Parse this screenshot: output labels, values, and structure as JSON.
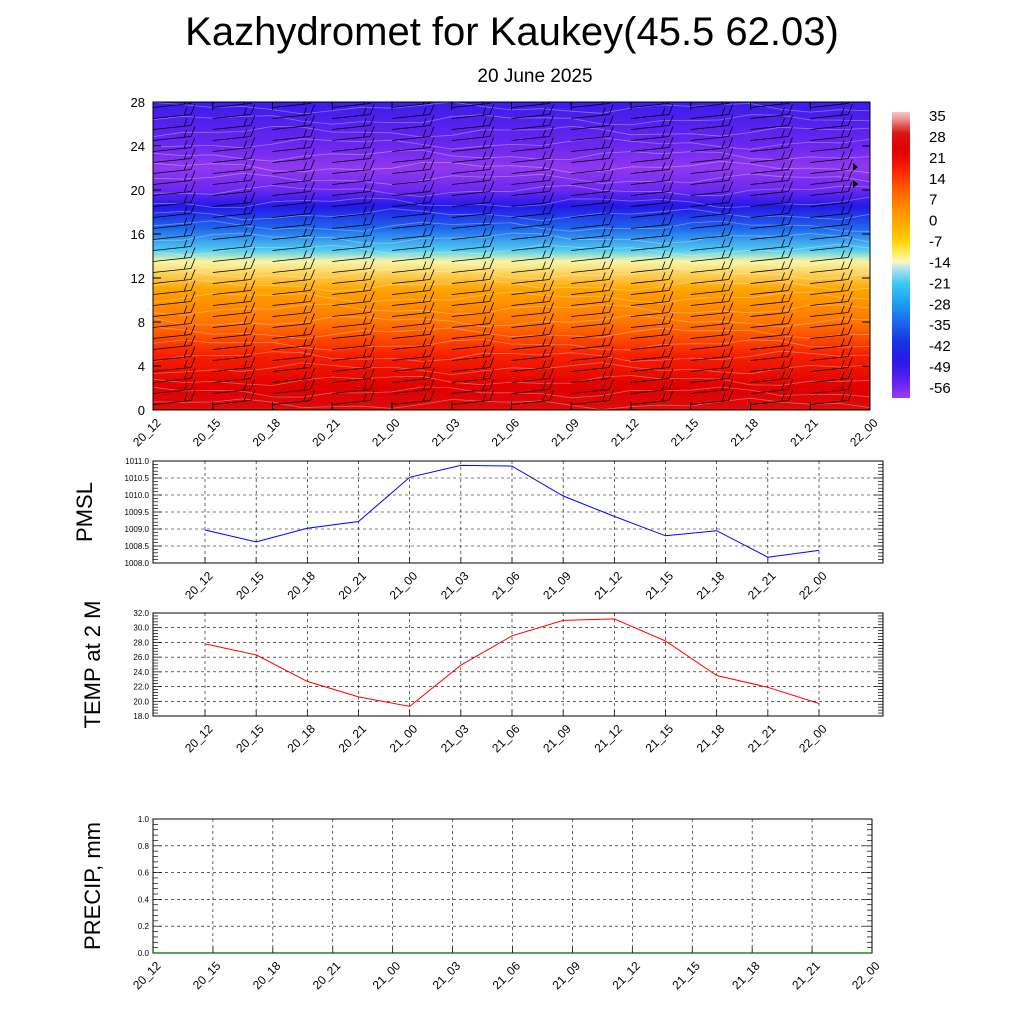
{
  "header": {
    "title": "Kazhydromet for Kaukey(45.5 62.03)",
    "subtitle": "20 June 2025"
  },
  "chart_data": [
    {
      "type": "heatmap",
      "name": "temperature-height",
      "ylabel": "",
      "xlabel": "",
      "ylim": [
        0,
        28
      ],
      "yticks": [
        "0",
        "4",
        "8",
        "12",
        "16",
        "20",
        "24",
        "28"
      ],
      "x_categories": [
        "20_12",
        "20_15",
        "20_18",
        "20_21",
        "21_00",
        "21_03",
        "21_06",
        "21_09",
        "21_12",
        "21_15",
        "21_18",
        "21_21",
        "22_00"
      ],
      "colorbar_labels": [
        "35",
        "28",
        "21",
        "14",
        "7",
        "0",
        "-7",
        "-14",
        "-21",
        "-28",
        "-35",
        "-42",
        "-49",
        "-56"
      ],
      "colorbar_range": [
        -63,
        42
      ],
      "temperature_profile": [
        {
          "height": 0,
          "value": 32
        },
        {
          "height": 2,
          "value": 28
        },
        {
          "height": 5,
          "value": 21
        },
        {
          "height": 8,
          "value": 10
        },
        {
          "height": 11,
          "value": 2
        },
        {
          "height": 13.5,
          "value": -12
        },
        {
          "height": 14.5,
          "value": -20
        },
        {
          "height": 16.5,
          "value": -35
        },
        {
          "height": 18.5,
          "value": -49
        },
        {
          "height": 20,
          "value": -58
        },
        {
          "height": 22,
          "value": -62
        },
        {
          "height": 24,
          "value": -58
        },
        {
          "height": 28,
          "value": -52
        }
      ],
      "wind_barbs": "yes",
      "grid": false
    },
    {
      "type": "line",
      "name": "pmsl",
      "ylabel": "PMSL",
      "ylim": [
        1008.0,
        1011.0
      ],
      "yticks": [
        "1008.0",
        "1008.5",
        "1009.0",
        "1009.5",
        "1010.0",
        "1010.5",
        "1011.0"
      ],
      "categories": [
        "20_12",
        "20_15",
        "20_18",
        "20_21",
        "21_00",
        "21_03",
        "21_06",
        "21_09",
        "21_12",
        "21_15",
        "21_18",
        "21_21",
        "22_00"
      ],
      "series": [
        {
          "color": "#0000ff",
          "values": [
            1008.97,
            1008.62,
            1009.02,
            1009.22,
            1010.52,
            1010.87,
            1010.85,
            1009.97,
            1009.37,
            1008.8,
            1008.95,
            1008.17,
            1008.37
          ]
        }
      ],
      "grid": true
    },
    {
      "type": "line",
      "name": "temp2m",
      "ylabel": "TEMP at 2 M",
      "ylim": [
        18.0,
        32.0
      ],
      "yticks": [
        "18.0",
        "20.0",
        "22.0",
        "24.0",
        "26.0",
        "28.0",
        "30.0",
        "32.0"
      ],
      "categories": [
        "20_12",
        "20_15",
        "20_18",
        "20_21",
        "21_00",
        "21_03",
        "21_06",
        "21_09",
        "21_12",
        "21_15",
        "21_18",
        "21_21",
        "22_00"
      ],
      "series": [
        {
          "color": "#ff0000",
          "values": [
            27.8,
            26.3,
            22.7,
            20.6,
            19.3,
            24.9,
            28.9,
            31.0,
            31.2,
            28.2,
            23.5,
            21.9,
            19.7
          ]
        }
      ],
      "grid": true
    },
    {
      "type": "bar",
      "name": "precip",
      "ylabel": "PRECIP, mm",
      "ylim": [
        0.0,
        1.0
      ],
      "yticks": [
        "0.0",
        "0.2",
        "0.4",
        "0.6",
        "0.8",
        "1.0"
      ],
      "categories": [
        "20_12",
        "20_15",
        "20_18",
        "20_21",
        "21_00",
        "21_03",
        "21_06",
        "21_09",
        "21_12",
        "21_15",
        "21_18",
        "21_21",
        "22_00"
      ],
      "series": [
        {
          "color": "#006400",
          "values": [
            0,
            0,
            0,
            0,
            0,
            0,
            0,
            0,
            0,
            0,
            0,
            0,
            0
          ]
        }
      ],
      "grid": true
    }
  ]
}
